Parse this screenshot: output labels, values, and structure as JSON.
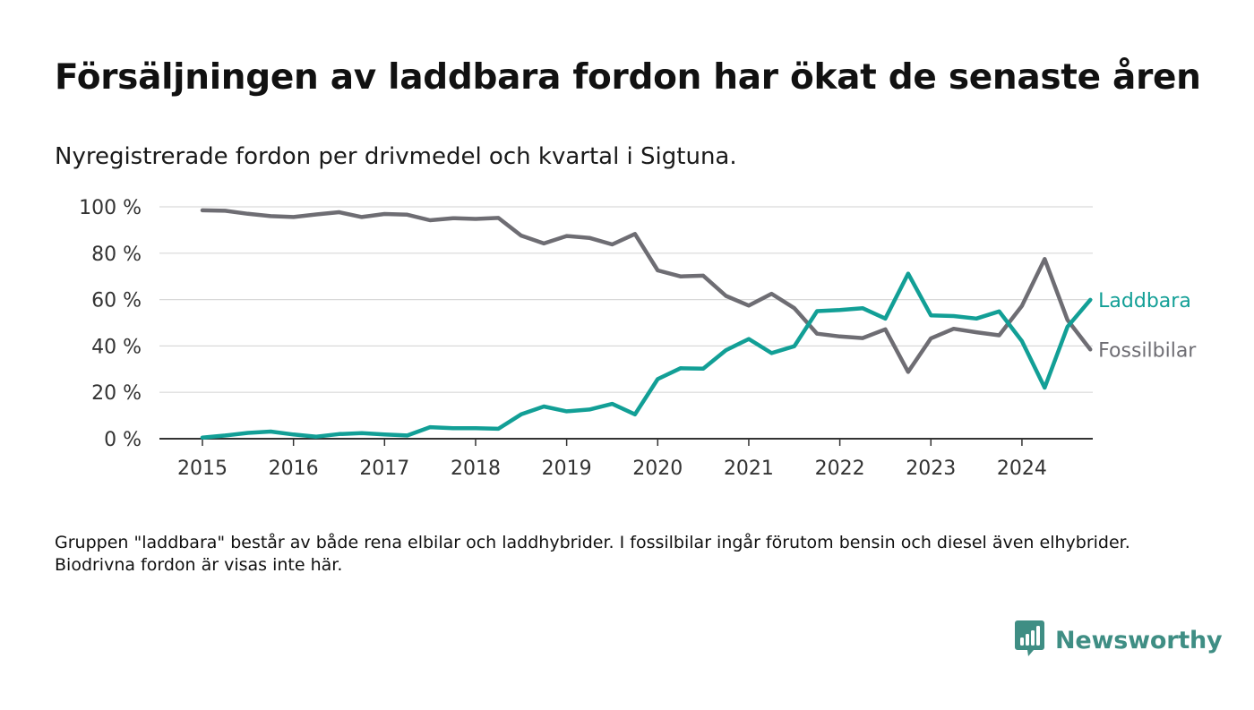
{
  "title": "Försäljningen av laddbara fordon har ökat de senaste åren",
  "subtitle": "Nyregistrerade fordon per drivmedel och kvartal i Sigtuna.",
  "footnote": "Gruppen \"laddbara\" består av både rena elbilar och laddhybrider. I fossilbilar ingår förutom bensin och diesel även elhybrider. Biodrivna fordon är visas inte här.",
  "brand": {
    "name": "Newsworthy",
    "color": "#3f8e84",
    "logo_icon": "bar-chart-speech-bubble-icon"
  },
  "chart_data": {
    "type": "line",
    "x_start": 2015,
    "x_step": 0.25,
    "xlim": [
      2015,
      2025.25
    ],
    "ylim": [
      0,
      100
    ],
    "x_ticks": [
      2015,
      2016,
      2017,
      2018,
      2019,
      2020,
      2021,
      2022,
      2023,
      2024
    ],
    "x_tick_labels": [
      "2015",
      "2016",
      "2017",
      "2018",
      "2019",
      "2020",
      "2021",
      "2022",
      "2023",
      "2024"
    ],
    "y_ticks": [
      0,
      20,
      40,
      60,
      80,
      100
    ],
    "y_tick_labels": [
      "0 %",
      "20 %",
      "40 %",
      "60 %",
      "80 %",
      "100 %"
    ],
    "grid": true,
    "series": [
      {
        "name": "Fossilbilar",
        "color": "#6e6d73",
        "values": [
          98.5,
          98.3,
          97,
          96,
          95.6,
          96.7,
          97.7,
          95.6,
          96.9,
          96.6,
          94.2,
          95.1,
          94.8,
          95.2,
          87.6,
          84.2,
          87.4,
          86.6,
          83.8,
          88.3,
          72.6,
          70,
          70.3,
          61.6,
          57.4,
          62.5,
          56.3,
          45.3,
          44.1,
          43.4,
          47.2,
          28.8,
          43.3,
          47.4,
          45.9,
          44.6,
          57.3,
          77.5,
          51.2,
          38.5
        ]
      },
      {
        "name": "Laddbara",
        "color": "#129f96",
        "values": [
          0.5,
          1.4,
          2.5,
          3.1,
          1.8,
          0.9,
          2,
          2.4,
          1.8,
          1.4,
          5,
          4.5,
          4.5,
          4.3,
          10.5,
          13.9,
          11.8,
          12.6,
          15,
          10.5,
          25.7,
          30.4,
          30.2,
          38.2,
          43,
          36.9,
          39.9,
          55,
          55.5,
          56.3,
          51.8,
          71.2,
          53.2,
          52.9,
          51.8,
          54.9,
          42.1,
          22,
          48.3,
          59.9
        ]
      }
    ]
  }
}
